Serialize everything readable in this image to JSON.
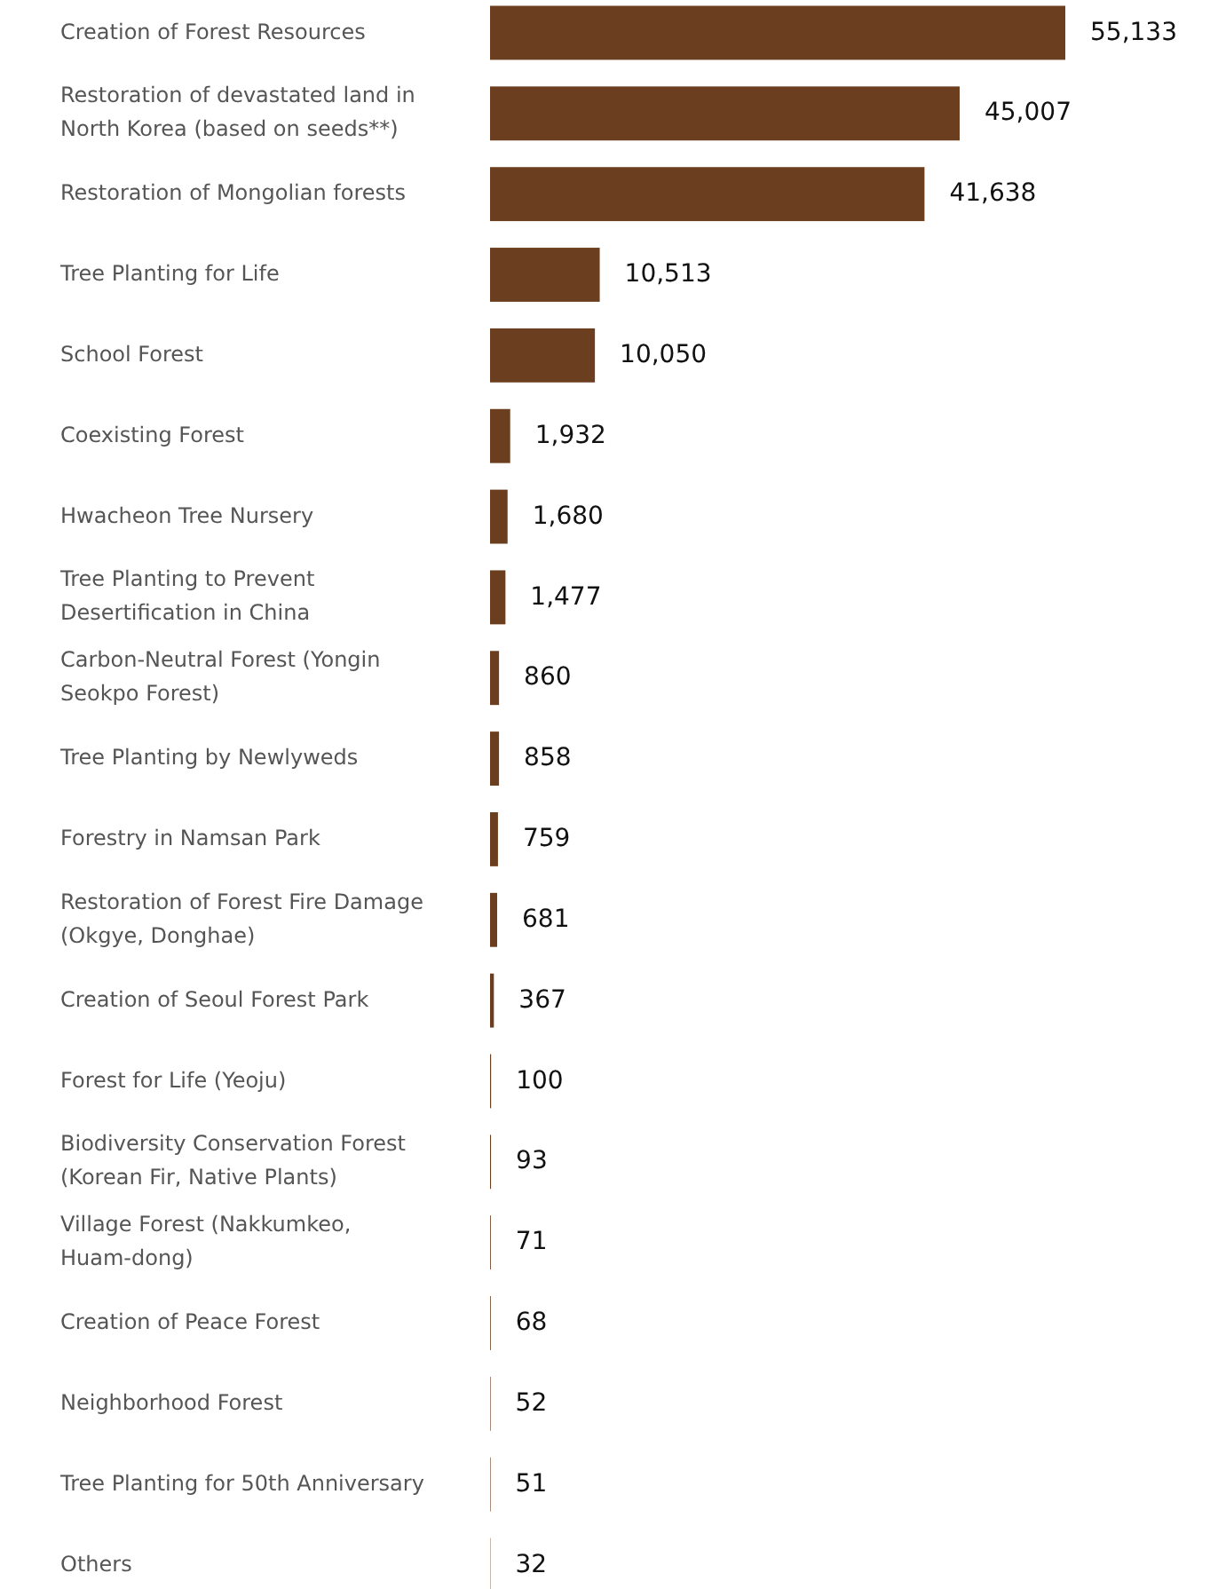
{
  "chart_data": {
    "type": "bar",
    "orientation": "horizontal",
    "value_labels": [
      "55,133",
      "45,007",
      "41,638",
      "10,513",
      "10,050",
      "1,932",
      "1,680",
      "1,477",
      "860",
      "858",
      "759",
      "681",
      "367",
      "100",
      "93",
      "71",
      "68",
      "52",
      "51",
      "32"
    ],
    "categories": [
      "Creation of Forest Resources",
      "Restoration of devastated land in North Korea (based on seeds**)",
      "Restoration of Mongolian forests",
      "Tree Planting for Life",
      "School Forest",
      "Coexisting Forest",
      "Hwacheon Tree Nursery",
      "Tree Planting to Prevent Desertification in China",
      "Carbon-Neutral Forest (Yongin Seokpo Forest)",
      "Tree Planting by Newlyweds",
      "Forestry in Namsan Park",
      "Restoration of Forest Fire Damage (Okgye, Donghae)",
      "Creation of Seoul Forest Park",
      "Forest for Life (Yeoju)",
      "Biodiversity Conservation Forest (Korean Fir, Native Plants)",
      "Village Forest (Nakkumkeo, Huam-dong)",
      "Creation of Peace Forest",
      "Neighborhood Forest",
      "Tree Planting for 50th Anniversary",
      "Others"
    ],
    "values": [
      55133,
      45007,
      41638,
      10513,
      10050,
      1932,
      1680,
      1477,
      860,
      858,
      759,
      681,
      367,
      100,
      93,
      71,
      68,
      52,
      51,
      32
    ],
    "color": "#6b3e1f"
  }
}
